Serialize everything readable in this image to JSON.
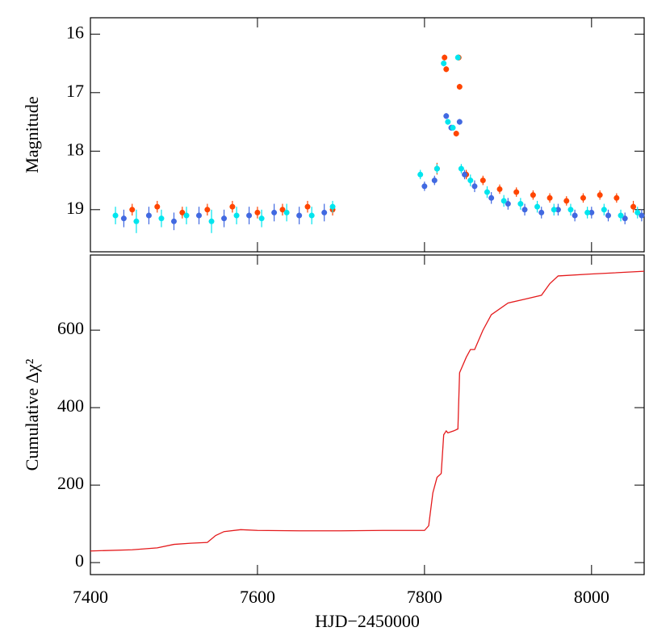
{
  "chart_data": [
    {
      "type": "scatter",
      "y_label": "Magnitude",
      "xlim": [
        7400,
        8063
      ],
      "ylim": [
        19.72,
        15.72
      ],
      "yticks": [
        16,
        17,
        18,
        19
      ],
      "xticks": [
        7400,
        7600,
        7800,
        8000
      ],
      "series": [
        {
          "color": "#ff4500",
          "x": [
            7450,
            7480,
            7510,
            7540,
            7570,
            7600,
            7630,
            7660,
            7690,
            7815,
            7824,
            7826,
            7838,
            7841,
            7842,
            7850,
            7870,
            7890,
            7910,
            7930,
            7950,
            7970,
            7990,
            8010,
            8030,
            8050
          ],
          "values": [
            19.0,
            18.95,
            19.05,
            19.0,
            18.95,
            19.05,
            19.0,
            18.95,
            19.0,
            18.3,
            16.4,
            16.6,
            17.7,
            16.4,
            16.9,
            18.4,
            18.5,
            18.65,
            18.7,
            18.75,
            18.8,
            18.85,
            18.8,
            18.75,
            18.8,
            18.95
          ],
          "errors": [
            0.1,
            0.1,
            0.1,
            0.1,
            0.1,
            0.1,
            0.1,
            0.1,
            0.1,
            0.1,
            0.05,
            0.05,
            0.05,
            0.05,
            0.05,
            0.08,
            0.08,
            0.08,
            0.08,
            0.08,
            0.08,
            0.08,
            0.08,
            0.08,
            0.08,
            0.1
          ]
        },
        {
          "color": "#4169e1",
          "x": [
            7440,
            7470,
            7500,
            7530,
            7560,
            7590,
            7620,
            7650,
            7680,
            7800,
            7812,
            7826,
            7832,
            7842,
            7848,
            7860,
            7880,
            7900,
            7920,
            7940,
            7960,
            7980,
            8000,
            8020,
            8040,
            8060
          ],
          "values": [
            19.15,
            19.1,
            19.2,
            19.1,
            19.15,
            19.1,
            19.05,
            19.1,
            19.05,
            18.6,
            18.5,
            17.4,
            17.6,
            17.5,
            18.4,
            18.6,
            18.8,
            18.9,
            19.0,
            19.05,
            19.0,
            19.1,
            19.05,
            19.1,
            19.15,
            19.1
          ],
          "errors": [
            0.15,
            0.15,
            0.15,
            0.15,
            0.15,
            0.15,
            0.15,
            0.15,
            0.15,
            0.08,
            0.08,
            0.05,
            0.05,
            0.05,
            0.08,
            0.1,
            0.1,
            0.1,
            0.1,
            0.1,
            0.1,
            0.1,
            0.1,
            0.1,
            0.1,
            0.1
          ]
        },
        {
          "color": "#00e5ee",
          "x": [
            7430,
            7455,
            7485,
            7515,
            7545,
            7575,
            7605,
            7635,
            7665,
            7690,
            7795,
            7815,
            7823,
            7828,
            7834,
            7840,
            7844,
            7855,
            7875,
            7895,
            7915,
            7935,
            7955,
            7975,
            7995,
            8015,
            8035,
            8055
          ],
          "values": [
            19.1,
            19.2,
            19.15,
            19.1,
            19.2,
            19.1,
            19.15,
            19.05,
            19.1,
            18.95,
            18.4,
            18.3,
            16.5,
            17.5,
            17.6,
            16.4,
            18.3,
            18.5,
            18.7,
            18.85,
            18.9,
            18.95,
            19.0,
            19.0,
            19.05,
            19.0,
            19.1,
            19.05
          ],
          "errors": [
            0.15,
            0.2,
            0.15,
            0.15,
            0.2,
            0.15,
            0.15,
            0.15,
            0.15,
            0.1,
            0.08,
            0.08,
            0.05,
            0.05,
            0.05,
            0.05,
            0.08,
            0.1,
            0.1,
            0.1,
            0.1,
            0.1,
            0.1,
            0.1,
            0.1,
            0.1,
            0.1,
            0.1
          ]
        }
      ]
    },
    {
      "type": "line",
      "y_label": "Cumulative Δχ²",
      "x_label": "HJD−2450000",
      "xlim": [
        7400,
        8063
      ],
      "ylim": [
        -31,
        794
      ],
      "xticks": [
        7400,
        7600,
        7800,
        8000
      ],
      "yticks": [
        0,
        200,
        400,
        600
      ],
      "series": [
        {
          "color": "#e41a1c",
          "x": [
            7400,
            7450,
            7480,
            7500,
            7520,
            7540,
            7550,
            7560,
            7580,
            7600,
            7650,
            7700,
            7750,
            7800,
            7805,
            7810,
            7815,
            7820,
            7823,
            7826,
            7828,
            7835,
            7840,
            7842,
            7850,
            7855,
            7860,
            7870,
            7880,
            7900,
            7920,
            7940,
            7950,
            7960,
            8000,
            8063
          ],
          "values": [
            30,
            33,
            38,
            47,
            50,
            52,
            70,
            80,
            85,
            83,
            82,
            82,
            83,
            83,
            95,
            180,
            220,
            230,
            330,
            340,
            335,
            340,
            345,
            490,
            530,
            550,
            550,
            600,
            640,
            670,
            680,
            690,
            720,
            740,
            745,
            752
          ]
        }
      ]
    }
  ]
}
